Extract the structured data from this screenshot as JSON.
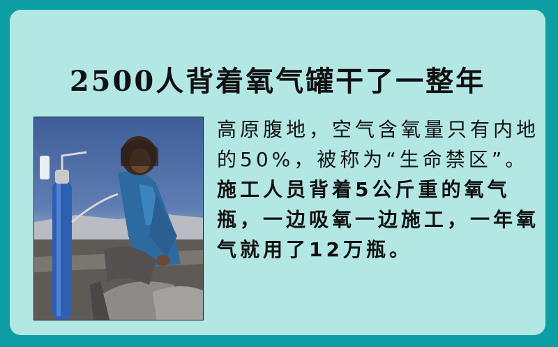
{
  "title": "2500人背着氧气罐干了一整年",
  "photo": {
    "description_icon": "worker-with-oxygen-tank-photo"
  },
  "paragraph": {
    "normal_part": "高原腹地，空气含氧量只有内地的50%，被称为“生命禁区”。",
    "bold_part": "施工人员背着5公斤重的氧气瓶，一边吸氧一边施工，一年氧气就用了12万瓶。"
  },
  "colors": {
    "outer_border": "#0d9ea3",
    "card_background": "#b3e7e4",
    "text": "#111111"
  }
}
